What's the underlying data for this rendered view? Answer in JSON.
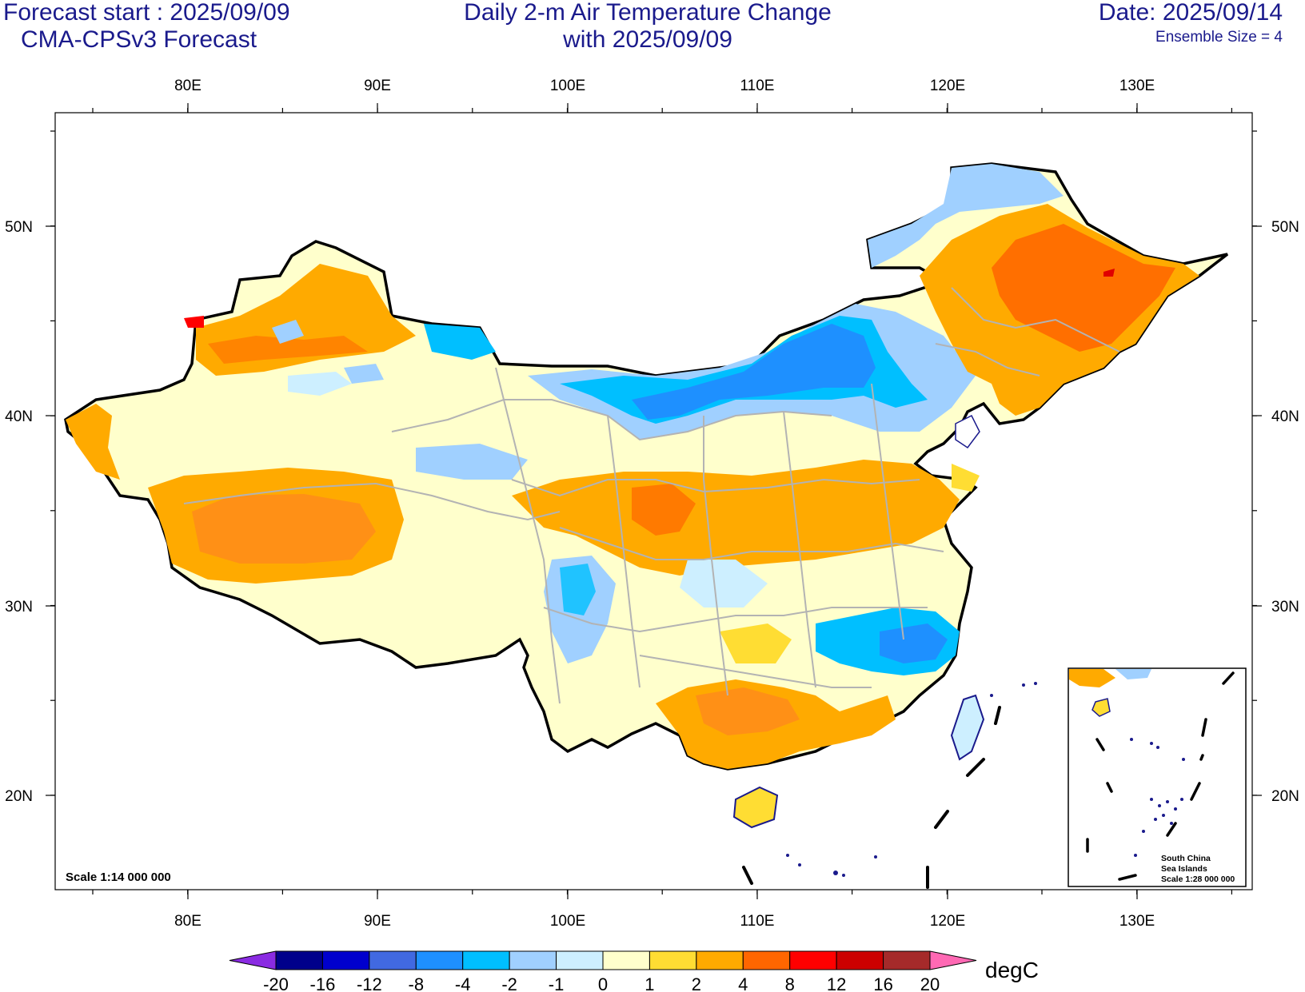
{
  "header": {
    "forecast_start": "Forecast start : 2025/09/09",
    "model": "CMA-CPSv3 Forecast",
    "title_line1": "Daily 2-m Air Temperature Change",
    "title_line2": "with 2025/09/09",
    "date": "Date: 2025/09/14",
    "ensemble": "Ensemble Size = 4"
  },
  "map": {
    "lon_labels": [
      "80E",
      "90E",
      "100E",
      "110E",
      "120E",
      "130E"
    ],
    "lat_labels": [
      "50N",
      "40N",
      "30N",
      "20N"
    ],
    "scale_text": "Scale 1:14 000 000",
    "inset": {
      "line1": "South China",
      "line2": "Sea Islands",
      "line3": "Scale 1:28 000 000"
    }
  },
  "colorbar": {
    "unit": "degC",
    "labels": [
      "-20",
      "-16",
      "-12",
      "-8",
      "-4",
      "-2",
      "-1",
      "0",
      "1",
      "2",
      "4",
      "8",
      "12",
      "16",
      "20"
    ],
    "colors": [
      "#8a2be2",
      "#00008b",
      "#0000cd",
      "#4169e1",
      "#1e90ff",
      "#00bfff",
      "#a0d0ff",
      "#cdefff",
      "#ffffcc",
      "#ffdd33",
      "#ffaa00",
      "#ff6600",
      "#ff0000",
      "#cc0000",
      "#a52a2a",
      "#ff69b4"
    ]
  }
}
